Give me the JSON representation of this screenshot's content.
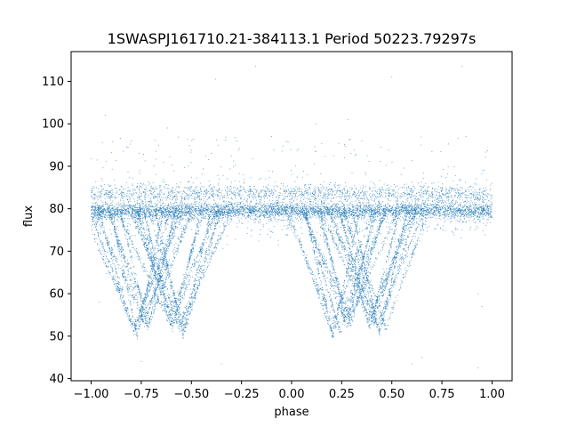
{
  "chart_data": {
    "type": "scatter",
    "title": "1SWASPJ161710.21-384113.1 Period 50223.79297s",
    "xlabel": "phase",
    "ylabel": "flux",
    "xlim": [
      -1.1,
      1.1
    ],
    "ylim": [
      39.5,
      117
    ],
    "xticks": [
      -1.0,
      -0.75,
      -0.5,
      -0.25,
      0.0,
      0.25,
      0.5,
      0.75,
      1.0
    ],
    "xtick_labels": [
      "−1.00",
      "−0.75",
      "−0.50",
      "−0.25",
      "0.00",
      "0.25",
      "0.50",
      "0.75",
      "1.00"
    ],
    "yticks": [
      40,
      50,
      60,
      70,
      80,
      90,
      100,
      110
    ],
    "ytick_labels": [
      "40",
      "50",
      "60",
      "70",
      "80",
      "90",
      "100",
      "110"
    ],
    "grid": false,
    "point_color": "#1f77b4",
    "series": [
      {
        "description_values": "folded light curve; baseline ~79.5 with upper band ~83.5, eclipse minima ~50 near phase -0.78, -0.55, 0.22, 0.45",
        "baseline_flux": 79.5,
        "upper_band_flux": 83.5,
        "phase_range": [
          -1.0,
          1.0
        ],
        "eclipses": [
          {
            "phase": -0.78,
            "min_flux": 50
          },
          {
            "phase": -0.72,
            "min_flux": 52
          },
          {
            "phase": -0.55,
            "min_flux": 50.5
          },
          {
            "phase": -0.6,
            "min_flux": 52
          },
          {
            "phase": 0.22,
            "min_flux": 50
          },
          {
            "phase": 0.28,
            "min_flux": 52
          },
          {
            "phase": 0.45,
            "min_flux": 50.5
          },
          {
            "phase": 0.4,
            "min_flux": 52
          }
        ],
        "outliers": [
          [
            -0.93,
            102
          ],
          [
            -0.38,
            110.5
          ],
          [
            -0.18,
            113.5
          ],
          [
            0.5,
            111
          ],
          [
            0.85,
            113.5
          ],
          [
            -0.75,
            44
          ],
          [
            -0.35,
            43.5
          ],
          [
            0.6,
            43.5
          ],
          [
            0.93,
            42.5
          ],
          [
            0.65,
            45
          ],
          [
            -0.62,
            99
          ],
          [
            0.12,
            100
          ],
          [
            0.28,
            101
          ],
          [
            0.87,
            97
          ],
          [
            -0.8,
            96
          ],
          [
            0.95,
            57
          ],
          [
            0.93,
            60
          ],
          [
            -0.96,
            58
          ],
          [
            0.35,
            96
          ],
          [
            -0.1,
            97
          ]
        ]
      }
    ]
  }
}
